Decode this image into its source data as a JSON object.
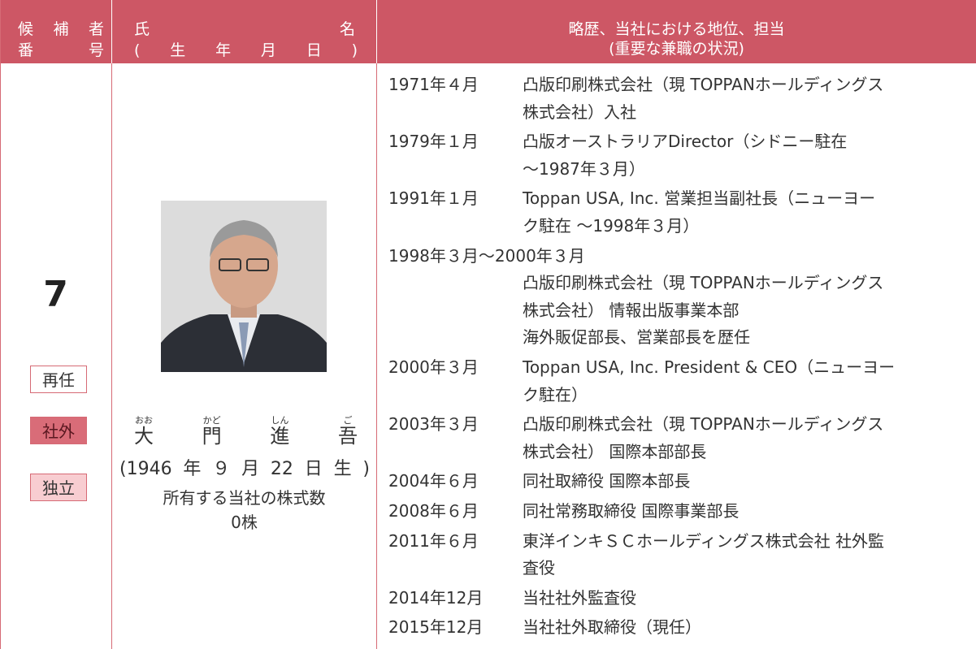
{
  "table": {
    "header": {
      "number": [
        "候補者",
        "番号"
      ],
      "name": {
        "left": "氏",
        "right": "名",
        "sub": "(生年月日)"
      },
      "career": [
        "略歴、当社における地位、担当",
        "(重要な兼職の状況)"
      ]
    },
    "candidate": {
      "number": "7",
      "badges": [
        "再任",
        "社外",
        "独立"
      ],
      "name": [
        {
          "kanji": "大",
          "ruby": "おお"
        },
        {
          "kanji": "門",
          "ruby": "かど"
        },
        {
          "kanji": "進",
          "ruby": "しん"
        },
        {
          "kanji": "吾",
          "ruby": "ご"
        }
      ],
      "birth": "(1946年９月22日生)",
      "shares_label": "所有する当社の株式数",
      "shares": "0株"
    },
    "career": [
      {
        "date": "1971年４月",
        "lines": [
          "凸版印刷株式会社（現 TOPPANホールディングス",
          "株式会社）入社"
        ]
      },
      {
        "date": "1979年１月",
        "lines": [
          "凸版オーストラリアDirector（シドニー駐在",
          "～1987年３月）"
        ]
      },
      {
        "date": "1991年１月",
        "lines": [
          "Toppan USA, Inc. 営業担当副社長（ニューヨー",
          "ク駐在 ～1998年３月）"
        ]
      },
      {
        "date": "1998年３月～2000年３月",
        "lines": [
          "凸版印刷株式会社（現 TOPPANホールディングス",
          "株式会社） 情報出版事業本部",
          "海外販促部長、営業部長を歴任"
        ]
      },
      {
        "date": "2000年３月",
        "lines": [
          "Toppan USA, Inc. President & CEO（ニューヨー",
          "ク駐在）"
        ]
      },
      {
        "date": "2003年３月",
        "lines": [
          "凸版印刷株式会社（現 TOPPANホールディングス",
          "株式会社） 国際本部部長"
        ]
      },
      {
        "date": "2004年６月",
        "lines": [
          "同社取締役 国際本部長"
        ]
      },
      {
        "date": "2008年６月",
        "lines": [
          "同社常務取締役 国際事業部長"
        ]
      },
      {
        "date": "2011年６月",
        "lines": [
          "東洋インキＳＣホールディングス株式会社 社外監",
          "査役"
        ]
      },
      {
        "date": "2014年12月",
        "lines": [
          "当社社外監査役"
        ]
      },
      {
        "date": "2015年12月",
        "lines": [
          "当社社外取締役（現任）"
        ]
      }
    ]
  }
}
